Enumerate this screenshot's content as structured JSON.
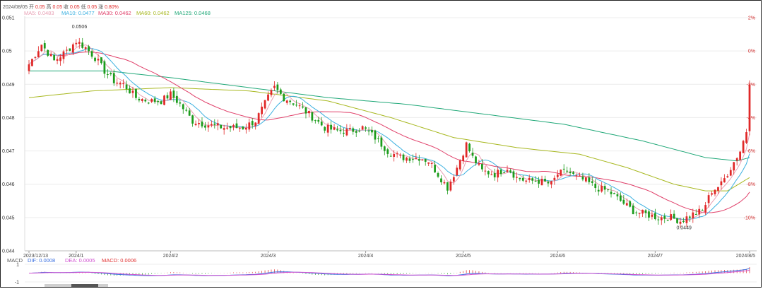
{
  "header": {
    "line1": {
      "date": "2024/08/05",
      "items": [
        {
          "label": "开",
          "value": "0.05"
        },
        {
          "label": "高",
          "value": "0.05"
        },
        {
          "label": "收",
          "value": "0.05"
        },
        {
          "label": "低",
          "value": "0.05"
        },
        {
          "label": "涨",
          "value": "0.80%"
        }
      ]
    },
    "ma_legend": [
      {
        "text": "MA5: 0.0483",
        "color": "#e8a0b4"
      },
      {
        "text": "MA10: 0.0477",
        "color": "#3bb0e0"
      },
      {
        "text": "MA30: 0.0462",
        "color": "#e0406a"
      },
      {
        "text": "MA60: 0.0462",
        "color": "#a8b820"
      },
      {
        "text": "MA125: 0.0468",
        "color": "#20a878"
      }
    ]
  },
  "macd_legend": {
    "title": "MACD",
    "items": [
      {
        "text": "DIF: 0.0008",
        "color": "#3b70e0"
      },
      {
        "text": "DEA: 0.0005",
        "color": "#d050d0"
      },
      {
        "text": "MACD: 0.0006",
        "color": "#e03030"
      }
    ]
  },
  "colors": {
    "up": "#e02828",
    "down": "#1c9c1c",
    "ma5": "#e8a0b4",
    "ma10": "#3bb0e0",
    "ma30": "#e0406a",
    "ma60": "#a8b820",
    "ma125": "#20a878",
    "dif": "#3b70e0",
    "dea": "#d050d0"
  },
  "chart_data": {
    "type": "candlestick",
    "ylim": [
      0.044,
      0.051
    ],
    "y_ticks": [
      "0.051",
      "0.05",
      "0.049",
      "0.048",
      "0.047",
      "0.046",
      "0.045",
      "0.044"
    ],
    "pct_ticks": [
      "2%",
      "0%",
      "-2%",
      "-4%",
      "-6%",
      "-8%",
      "-10%"
    ],
    "pct_values": [
      2,
      0,
      -2,
      -4,
      -6,
      -8,
      -10
    ],
    "pct_ref": 0.05,
    "x_labels": [
      "2023/12/13",
      "2024/1",
      "2024/2",
      "2024/3",
      "2024/4",
      "2024/5",
      "2024/6",
      "2024/7",
      "2024/8/5"
    ],
    "x_label_index": [
      0,
      15,
      45,
      76,
      107,
      138,
      168,
      199,
      229
    ],
    "high_label": {
      "text": "0.0506",
      "index": 15,
      "value": 0.0506
    },
    "low_label": {
      "text": "0.0449",
      "index": 208,
      "value": 0.0449
    },
    "anchors": [
      [
        0,
        0.0496
      ],
      [
        4,
        0.0502
      ],
      [
        8,
        0.0497
      ],
      [
        12,
        0.05
      ],
      [
        15,
        0.0503
      ],
      [
        18,
        0.0501
      ],
      [
        21,
        0.0498
      ],
      [
        24,
        0.0494
      ],
      [
        27,
        0.0491
      ],
      [
        30,
        0.049
      ],
      [
        34,
        0.0486
      ],
      [
        38,
        0.0485
      ],
      [
        42,
        0.0485
      ],
      [
        45,
        0.0487
      ],
      [
        48,
        0.0484
      ],
      [
        52,
        0.0479
      ],
      [
        56,
        0.0478
      ],
      [
        62,
        0.0477
      ],
      [
        68,
        0.0477
      ],
      [
        72,
        0.0479
      ],
      [
        76,
        0.0486
      ],
      [
        78,
        0.0489
      ],
      [
        81,
        0.0486
      ],
      [
        85,
        0.0484
      ],
      [
        89,
        0.0481
      ],
      [
        94,
        0.0477
      ],
      [
        98,
        0.0476
      ],
      [
        102,
        0.0476
      ],
      [
        106,
        0.0477
      ],
      [
        110,
        0.0474
      ],
      [
        114,
        0.047
      ],
      [
        118,
        0.0468
      ],
      [
        124,
        0.0468
      ],
      [
        127,
        0.0467
      ],
      [
        130,
        0.0463
      ],
      [
        133,
        0.0459
      ],
      [
        136,
        0.0465
      ],
      [
        139,
        0.0472
      ],
      [
        141,
        0.0468
      ],
      [
        144,
        0.0464
      ],
      [
        148,
        0.0463
      ],
      [
        152,
        0.0465
      ],
      [
        155,
        0.0462
      ],
      [
        158,
        0.0461
      ],
      [
        162,
        0.0461
      ],
      [
        166,
        0.046
      ],
      [
        168,
        0.0463
      ],
      [
        171,
        0.0464
      ],
      [
        174,
        0.0462
      ],
      [
        177,
        0.0461
      ],
      [
        180,
        0.0459
      ],
      [
        184,
        0.0458
      ],
      [
        188,
        0.0455
      ],
      [
        192,
        0.0452
      ],
      [
        196,
        0.0451
      ],
      [
        200,
        0.045
      ],
      [
        204,
        0.045
      ],
      [
        207,
        0.0449
      ],
      [
        211,
        0.0451
      ],
      [
        214,
        0.0452
      ],
      [
        217,
        0.0458
      ],
      [
        220,
        0.046
      ],
      [
        223,
        0.0465
      ],
      [
        226,
        0.047
      ],
      [
        228,
        0.0476
      ],
      [
        229,
        0.0491
      ]
    ],
    "ma60_anchors": [
      [
        0,
        0.0486
      ],
      [
        20,
        0.0488
      ],
      [
        45,
        0.0489
      ],
      [
        70,
        0.0488
      ],
      [
        95,
        0.0485
      ],
      [
        115,
        0.048
      ],
      [
        135,
        0.0474
      ],
      [
        155,
        0.0471
      ],
      [
        175,
        0.0469
      ],
      [
        190,
        0.0465
      ],
      [
        205,
        0.046
      ],
      [
        215,
        0.0458
      ],
      [
        222,
        0.0458
      ],
      [
        229,
        0.0462
      ]
    ],
    "ma125_anchors": [
      [
        0,
        0.0494
      ],
      [
        25,
        0.0494
      ],
      [
        45,
        0.0492
      ],
      [
        70,
        0.0489
      ],
      [
        95,
        0.0486
      ],
      [
        120,
        0.0484
      ],
      [
        145,
        0.0481
      ],
      [
        170,
        0.0478
      ],
      [
        195,
        0.0473
      ],
      [
        215,
        0.0468
      ],
      [
        225,
        0.0467
      ],
      [
        229,
        0.0468
      ]
    ],
    "series": [
      {
        "name": "MA5"
      },
      {
        "name": "MA10"
      },
      {
        "name": "MA30"
      },
      {
        "name": "MA60"
      },
      {
        "name": "MA125"
      }
    ],
    "macd": {
      "ylim": [
        -1,
        1
      ],
      "y_ticks": [
        "1",
        "-1"
      ]
    }
  }
}
